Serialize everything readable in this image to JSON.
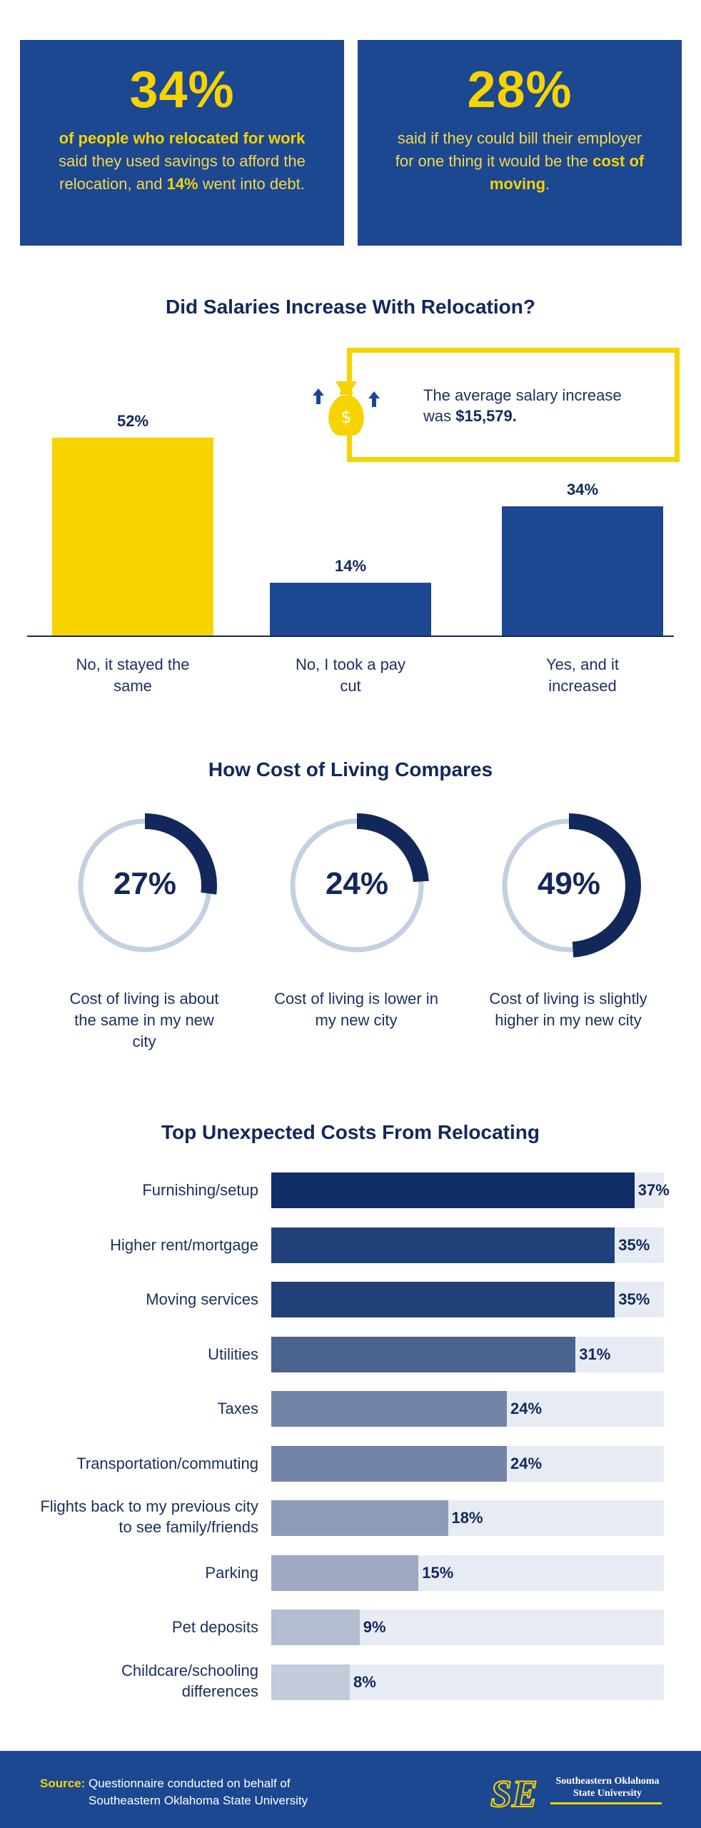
{
  "stats": [
    {
      "big": "34%",
      "parts": [
        {
          "t": "of people who relocated for work",
          "b": true
        },
        {
          "t": " said they used savings to afford the relocation, and ",
          "b": false
        },
        {
          "t": "14%",
          "b": true
        },
        {
          "t": " went into debt.",
          "b": false
        }
      ]
    },
    {
      "big": "28%",
      "parts": [
        {
          "t": "said if they could bill their employer for one thing it would be the ",
          "b": false
        },
        {
          "t": "cost of moving",
          "b": true
        },
        {
          "t": ".",
          "b": false
        }
      ]
    }
  ],
  "salary": {
    "title": "Did Salaries Increase With Relocation?",
    "callout_text": "The average salary increase was ",
    "callout_value": "$15,579.",
    "icon": "money-bag-icon"
  },
  "cost_of_living": {
    "title": "How Cost of Living Compares",
    "items": [
      {
        "pct": "27%",
        "caption": "Cost of living is about the same in my new city"
      },
      {
        "pct": "24%",
        "caption": "Cost of living is lower in my new city"
      },
      {
        "pct": "49%",
        "caption": "Cost of living is slightly higher in my new city"
      }
    ]
  },
  "costs": {
    "title": "Top Unexpected Costs From Relocating"
  },
  "footer": {
    "source_key": "Source:",
    "source_line1": " Questionnaire conducted on behalf of",
    "source_line2": "Southeastern Oklahoma State University",
    "logo_line1": "Southeastern Oklahoma",
    "logo_line2": "State University",
    "logo_letters": "SE"
  },
  "colors": {
    "navy": "#1c4791",
    "yellow": "#f7d300",
    "dark_navy": "#13285a",
    "ring_track": "#c5cfe2"
  },
  "chart_data": [
    {
      "type": "bar",
      "title": "Did Salaries Increase With Relocation?",
      "categories": [
        "No, it stayed the same",
        "No, I took a pay cut",
        "Yes, and it increased"
      ],
      "values": [
        52,
        14,
        34
      ],
      "labels": [
        "52%",
        "14%",
        "34%"
      ],
      "colors": [
        "#f7d300",
        "#1c4791",
        "#1c4791"
      ],
      "ylim": [
        0,
        60
      ]
    },
    {
      "type": "pie",
      "title": "How Cost of Living Compares",
      "categories": [
        "Cost of living is about the same in my new city",
        "Cost of living is lower in my new city",
        "Cost of living is slightly higher in my new city"
      ],
      "values": [
        27,
        24,
        49
      ]
    },
    {
      "type": "bar",
      "title": "Top Unexpected Costs From Relocating",
      "orientation": "horizontal",
      "categories": [
        "Furnishing/setup",
        "Higher rent/mortgage",
        "Moving services",
        "Utilities",
        "Taxes",
        "Transportation/commuting",
        "Flights back to my previous city to see family/friends",
        "Parking",
        "Pet deposits",
        "Childcare/schooling differences"
      ],
      "values": [
        37,
        35,
        35,
        31,
        24,
        24,
        18,
        15,
        9,
        8
      ],
      "labels": [
        "37%",
        "35%",
        "35%",
        "31%",
        "24%",
        "24%",
        "18%",
        "15%",
        "9%",
        "8%"
      ],
      "colors": [
        "#0f2d66",
        "#20407a",
        "#20407a",
        "#4a638f",
        "#7285a8",
        "#7285a8",
        "#8d9bb8",
        "#9eaac3",
        "#b4bdd0",
        "#c4cbdb"
      ],
      "xlim": [
        0,
        40
      ]
    }
  ]
}
